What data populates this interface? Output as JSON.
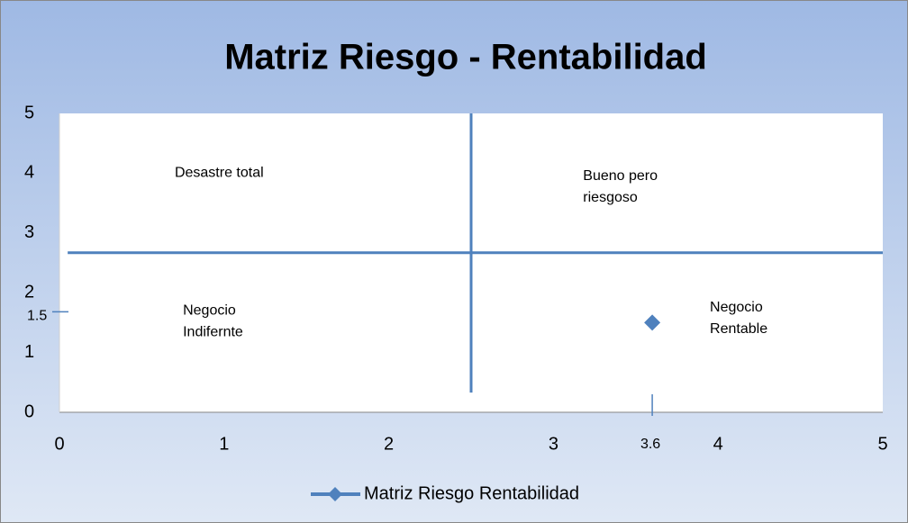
{
  "chart_data": {
    "type": "scatter",
    "title": "Matriz Riesgo - Rentabilidad",
    "series": [
      {
        "name": "Matriz Riesgo Rentabilidad",
        "color": "#4f81bd",
        "x": [
          3.6
        ],
        "values": [
          1.5
        ]
      }
    ],
    "quadrant_lines": {
      "color": "#4f81bd",
      "lines": [
        {
          "x": [
            2.5,
            2.5
          ],
          "y": [
            0.33,
            5
          ]
        },
        {
          "x": [
            0.05,
            5
          ],
          "y": [
            2.67,
            2.67
          ]
        }
      ]
    },
    "annotations": [
      {
        "lines": [
          "Desastre total"
        ],
        "x": 0.7,
        "y": 4
      },
      {
        "lines": [
          "Bueno pero",
          "riesgoso"
        ],
        "x": 3.18,
        "y": 3.95
      },
      {
        "lines": [
          "Negocio",
          "Indifernte"
        ],
        "x": 0.75,
        "y": 1.7
      },
      {
        "lines": [
          "Negocio",
          "Rentable"
        ],
        "x": 3.95,
        "y": 1.75
      }
    ],
    "highlight_ticks": {
      "x": {
        "value": 3.6,
        "label": "3.6"
      },
      "y": {
        "value": 1.5,
        "label": "1.5"
      }
    },
    "xlim": [
      0,
      5
    ],
    "xticks": [
      0,
      1,
      2,
      3,
      4,
      5
    ],
    "ylim": [
      0,
      5
    ],
    "yticks": [
      0,
      1,
      2,
      3,
      4,
      5
    ],
    "grid": false,
    "legend": "bottom"
  }
}
